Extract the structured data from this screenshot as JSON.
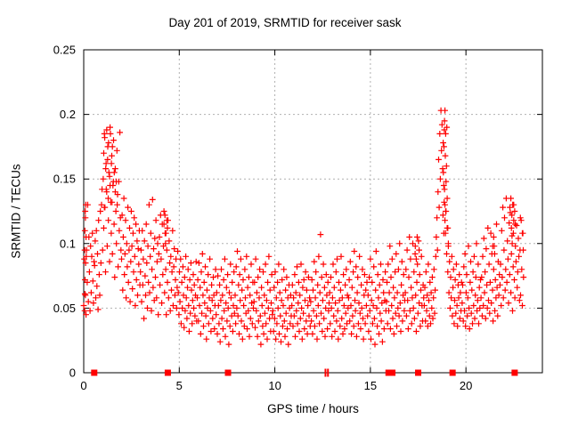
{
  "title": "Day 201 of 2019, SRMTID for receiver sask",
  "chart_data": {
    "type": "scatter",
    "title": "Day 201 of 2019, SRMTID for receiver sask",
    "xlabel": "GPS time / hours",
    "ylabel": "SRMTID / TECUs",
    "xlim": [
      0,
      24
    ],
    "ylim": [
      0,
      0.25
    ],
    "xtick_values": [
      0,
      5,
      10,
      15,
      20
    ],
    "xtick_labels": [
      "0",
      "5",
      "10",
      "15",
      "20"
    ],
    "ytick_values": [
      0,
      0.05,
      0.1,
      0.15,
      0.2,
      0.25
    ],
    "ytick_labels": [
      "0",
      "0.05",
      "0.1",
      "0.15",
      "0.2",
      "0.25"
    ],
    "grid": true,
    "legend": "none",
    "marker": "plus",
    "marker_color": "#ff0000",
    "grid_color": "#b0b0b0",
    "frame_color": "#000000",
    "series": [
      {
        "name": "SRMTID",
        "x0": 0.0,
        "dx": 0.03,
        "y_unit": "milli-TECU",
        "y_milli": [
          52,
          88,
          61,
          120,
          45,
          95,
          70,
          130,
          55,
          105,
          78,
          48,
          98,
          62,
          90,
          108,
          71,
          54,
          86,
          83,
          102,
          58,
          110,
          67,
          92,
          49,
          118,
          76,
          60,
          125,
          85,
          130,
          142,
          95,
          150,
          112,
          185,
          128,
          78,
          162,
          140,
          98,
          175,
          118,
          155,
          86,
          190,
          132,
          108,
          168,
          92,
          145,
          180,
          115,
          74,
          158,
          125,
          100,
          172,
          138,
          82,
          148,
          110,
          186,
          120,
          95,
          88,
          122,
          64,
          105,
          135,
          76,
          92,
          118,
          58,
          100,
          82,
          128,
          70,
          95,
          112,
          55,
          86,
          125,
          98,
          65,
          108,
          78,
          120,
          90,
          52,
          115,
          72,
          102,
          60,
          96,
          84,
          110,
          68,
          78,
          95,
          55,
          110,
          68,
          88,
          42,
          102,
          75,
          60,
          115,
          85,
          50,
          98,
          70,
          130,
          62,
          90,
          108,
          48,
          80,
          134,
          66,
          96,
          56,
          104,
          74,
          118,
          58,
          86,
          100,
          45,
          92,
          105,
          68,
          122,
          88,
          54,
          115,
          76,
          98,
          125,
          62,
          108,
          80,
          45,
          95,
          70,
          118,
          58,
          102,
          85,
          48,
          90,
          64,
          78,
          110,
          52,
          82,
          96,
          60,
          72,
          88,
          50,
          66,
          94,
          62,
          45,
          78,
          55,
          88,
          38,
          70,
          50,
          82,
          60,
          35,
          74,
          48,
          90,
          58,
          42,
          66,
          80,
          52,
          32,
          72,
          46,
          85,
          64,
          38,
          56,
          76,
          50,
          68,
          44,
          60,
          86,
          40,
          58,
          72,
          40,
          85,
          52,
          66,
          30,
          78,
          46,
          92,
          60,
          36,
          70,
          54,
          82,
          44,
          26,
          64,
          50,
          76,
          38,
          58,
          88,
          48,
          32,
          68,
          56,
          42,
          74,
          60,
          34,
          52,
          80,
          45,
          62,
          30,
          75,
          52,
          38,
          68,
          24,
          56,
          80,
          42,
          60,
          34,
          72,
          48,
          88,
          28,
          54,
          66,
          40,
          76,
          50,
          22,
          62,
          36,
          84,
          58,
          44,
          70,
          32,
          52,
          78,
          46,
          60,
          38,
          82,
          50,
          94,
          44,
          68,
          30,
          76,
          56,
          88,
          40,
          64,
          26,
          72,
          52,
          36,
          80,
          58,
          46,
          90,
          34,
          66,
          48,
          74,
          28,
          60,
          42,
          84,
          54,
          38,
          70,
          50,
          55,
          70,
          35,
          88,
          48,
          62,
          28,
          74,
          40,
          58,
          80,
          44,
          22,
          66,
          52,
          36,
          78,
          30,
          60,
          46,
          84,
          38,
          56,
          26,
          70,
          50,
          90,
          42,
          64,
          32,
          54,
          76,
          45,
          48,
          32,
          66,
          42,
          78,
          26,
          58,
          38,
          70,
          50,
          84,
          30,
          62,
          44,
          24,
          56,
          72,
          36,
          52,
          80,
          40,
          28,
          64,
          46,
          74,
          34,
          58,
          22,
          68,
          50,
          38,
          60,
          44,
          52,
          68,
          36,
          58,
          44,
          76,
          28,
          62,
          48,
          82,
          38,
          54,
          70,
          32,
          60,
          42,
          84,
          50,
          26,
          66,
          46,
          72,
          34,
          56,
          78,
          40,
          64,
          30,
          52,
          74,
          44,
          58,
          36,
          55,
          40,
          72,
          30,
          64,
          48,
          86,
          36,
          58,
          78,
          44,
          26,
          68,
          52,
          90,
          38,
          62,
          107,
          46,
          74,
          32,
          56,
          84,
          42,
          66,
          28,
          50,
          76,
          60,
          34,
          70,
          48,
          54,
          62,
          38,
          74,
          50,
          28,
          58,
          84,
          44,
          66,
          32,
          54,
          78,
          40,
          88,
          48,
          26,
          70,
          56,
          36,
          64,
          90,
          42,
          58,
          30,
          76,
          52,
          34,
          68,
          46,
          80,
          38,
          60,
          50,
          58,
          72,
          40,
          86,
          52,
          30,
          66,
          44,
          78,
          36,
          94,
          56,
          48,
          82,
          28,
          62,
          74,
          38,
          54,
          90,
          46,
          34,
          68,
          50,
          80,
          42,
          26,
          60,
          76,
          38,
          64,
          52,
          70,
          44,
          60,
          32,
          74,
          48,
          88,
          26,
          56,
          70,
          38,
          52,
          82,
          42,
          22,
          64,
          94,
          50,
          36,
          76,
          58,
          30,
          68,
          46,
          84,
          40,
          54,
          24,
          72,
          62,
          34,
          56,
          78,
          48,
          55,
          70,
          38,
          84,
          48,
          62,
          98,
          34,
          74,
          52,
          88,
          42,
          66,
          30,
          58,
          78,
          46,
          92,
          36,
          62,
          50,
          80,
          44,
          100,
          54,
          32,
          68,
          86,
          40,
          60,
          76,
          48,
          56,
          62,
          80,
          44,
          95,
          56,
          34,
          74,
          105,
          48,
          88,
          66,
          38,
          58,
          100,
          50,
          78,
          42,
          92,
          60,
          32,
          70,
          84,
          46,
          102,
          54,
          76,
          36,
          64,
          90,
          52,
          40,
          68,
          58,
          52,
          66,
          40,
          78,
          48,
          60,
          36,
          84,
          56,
          44,
          70,
          38,
          62,
          50,
          74,
          42,
          58,
          80,
          46,
          64,
          90,
          105,
          120,
          95,
          140,
          165,
          128,
          185,
          150,
          203,
          172,
          192,
          158,
          178,
          145,
          188,
          130,
          108,
          125,
          92,
          112,
          78,
          98,
          62,
          86,
          50,
          74,
          58,
          90,
          44,
          66,
          80,
          38,
          56,
          72,
          46,
          84,
          52,
          36,
          68,
          58,
          76,
          42,
          62,
          48,
          70,
          54,
          68,
          40,
          82,
          48,
          92,
          36,
          62,
          76,
          44,
          58,
          98,
          50,
          34,
          70,
          86,
          46,
          64,
          38,
          78,
          52,
          90,
          42,
          60,
          74,
          100,
          48,
          56,
          84,
          38,
          66,
          50,
          72,
          58,
          74,
          44,
          90,
          52,
          104,
          62,
          78,
          42,
          96,
          68,
          50,
          112,
          56,
          84,
          46,
          70,
          108,
          54,
          92,
          64,
          40,
          80,
          98,
          48,
          72,
          58,
          115,
          66,
          44,
          86,
          60,
          76,
          68,
          84,
          52,
          110,
          74,
          128,
          58,
          95,
          120,
          64,
          80,
          135,
          70,
          102,
          88,
          54,
          116,
          76,
          124,
          62,
          92,
          106,
          48,
          82,
          130,
          72,
          58,
          98,
          86,
          114,
          66,
          78,
          104,
          90,
          56,
          95,
          60,
          118,
          80,
          52,
          108,
          74
        ]
      }
    ],
    "extra_points": [
      [
        0.05,
        0.095
      ],
      [
        0.06,
        0.11
      ],
      [
        0.08,
        0.125
      ],
      [
        0.1,
        0.085
      ],
      [
        0.12,
        0.105
      ],
      [
        0.07,
        0.072
      ],
      [
        0.09,
        0.06
      ],
      [
        0.11,
        0.13
      ],
      [
        0.13,
        0.09
      ],
      [
        0.05,
        0.048
      ],
      [
        1.05,
        0.17
      ],
      [
        1.1,
        0.182
      ],
      [
        1.15,
        0.158
      ],
      [
        1.2,
        0.188
      ],
      [
        1.25,
        0.165
      ],
      [
        1.3,
        0.178
      ],
      [
        1.35,
        0.152
      ],
      [
        1.4,
        0.185
      ],
      [
        1.45,
        0.162
      ],
      [
        1.5,
        0.175
      ],
      [
        1.55,
        0.148
      ],
      [
        1.18,
        0.142
      ],
      [
        1.28,
        0.135
      ],
      [
        1.38,
        0.145
      ],
      [
        1.08,
        0.128
      ],
      [
        1.48,
        0.132
      ],
      [
        1.6,
        0.155
      ],
      [
        1.65,
        0.14
      ],
      [
        1.7,
        0.148
      ],
      [
        1.75,
        0.13
      ],
      [
        4.2,
        0.115
      ],
      [
        4.25,
        0.122
      ],
      [
        4.3,
        0.108
      ],
      [
        4.35,
        0.118
      ],
      [
        4.28,
        0.1
      ],
      [
        4.38,
        0.112
      ],
      [
        17.35,
        0.098
      ],
      [
        17.45,
        0.105
      ],
      [
        17.55,
        0.095
      ],
      [
        17.4,
        0.088
      ],
      [
        18.82,
        0.155
      ],
      [
        18.85,
        0.175
      ],
      [
        18.88,
        0.195
      ],
      [
        18.9,
        0.203
      ],
      [
        18.92,
        0.168
      ],
      [
        18.94,
        0.185
      ],
      [
        18.96,
        0.148
      ],
      [
        18.98,
        0.16
      ],
      [
        19.0,
        0.19
      ],
      [
        18.86,
        0.132
      ],
      [
        18.9,
        0.118
      ],
      [
        18.94,
        0.125
      ],
      [
        19.02,
        0.135
      ],
      [
        19.05,
        0.112
      ],
      [
        18.84,
        0.108
      ],
      [
        19.08,
        0.1
      ],
      [
        18.8,
        0.122
      ],
      [
        18.88,
        0.142
      ],
      [
        21.4,
        0.098
      ],
      [
        21.45,
        0.105
      ],
      [
        21.5,
        0.092
      ],
      [
        22.3,
        0.128
      ],
      [
        22.35,
        0.135
      ],
      [
        22.4,
        0.122
      ],
      [
        22.45,
        0.13
      ],
      [
        22.5,
        0.118
      ],
      [
        22.55,
        0.125
      ],
      [
        22.38,
        0.112
      ],
      [
        22.48,
        0.108
      ],
      [
        22.58,
        0.115
      ],
      [
        22.42,
        0.1
      ],
      [
        22.85,
        0.12
      ],
      [
        22.95,
        0.108
      ],
      [
        23.0,
        0.095
      ]
    ],
    "zero_markers": {
      "squares_x": [
        0.55,
        4.4,
        7.55,
        15.95,
        16.15,
        17.5,
        19.3,
        22.55
      ],
      "thin_bars_x": [
        12.65,
        12.78
      ]
    }
  }
}
